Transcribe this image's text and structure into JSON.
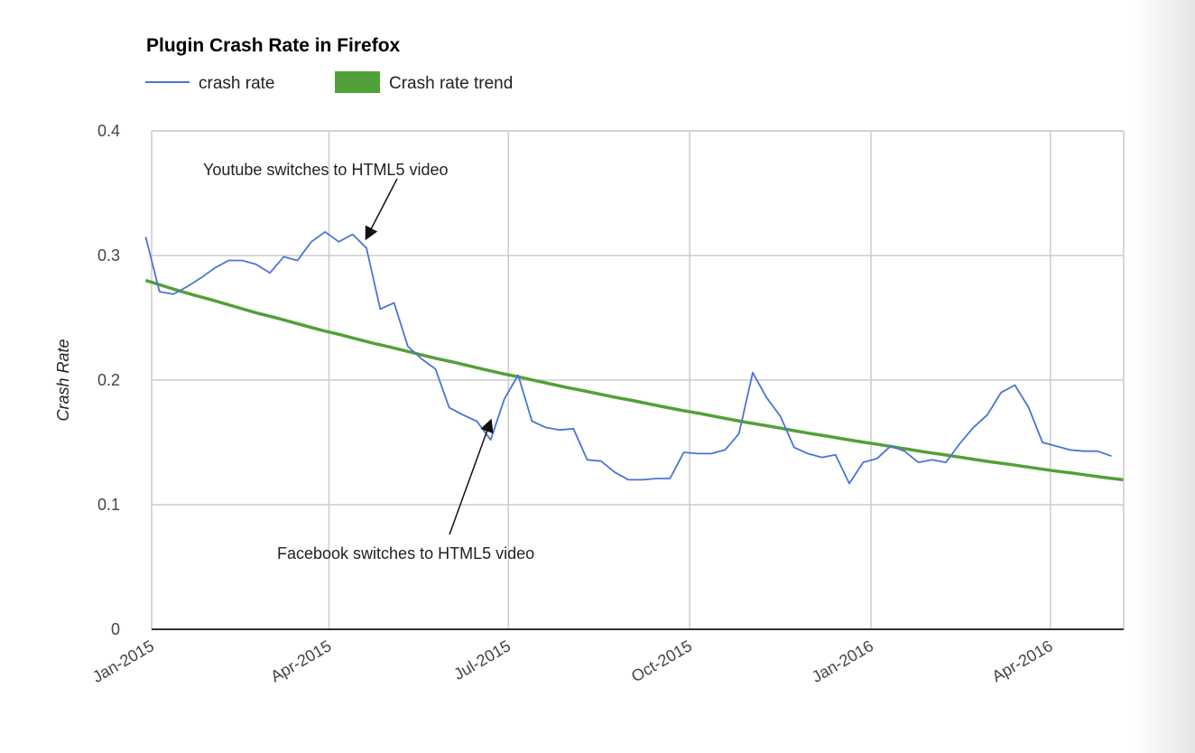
{
  "chart_data": {
    "type": "line",
    "title": "Plugin Crash Rate in Firefox",
    "xlabel": "",
    "ylabel": "Crash Rate",
    "ylim": [
      0,
      0.4
    ],
    "yticks": [
      "0",
      "0.1",
      "0.2",
      "0.3",
      "0.4"
    ],
    "xticks": [
      {
        "label": "Jan-2015",
        "date": "2015-01-01"
      },
      {
        "label": "Apr-2015",
        "date": "2015-04-01"
      },
      {
        "label": "Jul-2015",
        "date": "2015-07-01"
      },
      {
        "label": "Oct-2015",
        "date": "2015-10-01"
      },
      {
        "label": "Jan-2016",
        "date": "2016-01-01"
      },
      {
        "label": "Apr-2016",
        "date": "2016-04-01"
      }
    ],
    "grid": true,
    "legend_position": "top-left",
    "x": [
      "2014-12-29",
      "2015-01-05",
      "2015-01-12",
      "2015-01-19",
      "2015-01-26",
      "2015-02-02",
      "2015-02-09",
      "2015-02-16",
      "2015-02-23",
      "2015-03-02",
      "2015-03-09",
      "2015-03-16",
      "2015-03-23",
      "2015-03-30",
      "2015-04-06",
      "2015-04-13",
      "2015-04-20",
      "2015-04-27",
      "2015-05-04",
      "2015-05-11",
      "2015-05-18",
      "2015-05-25",
      "2015-06-01",
      "2015-06-08",
      "2015-06-15",
      "2015-06-22",
      "2015-06-29",
      "2015-07-06",
      "2015-07-13",
      "2015-07-20",
      "2015-07-27",
      "2015-08-03",
      "2015-08-10",
      "2015-08-17",
      "2015-08-24",
      "2015-08-31",
      "2015-09-07",
      "2015-09-14",
      "2015-09-21",
      "2015-09-28",
      "2015-10-05",
      "2015-10-12",
      "2015-10-19",
      "2015-10-26",
      "2015-11-02",
      "2015-11-09",
      "2015-11-16",
      "2015-11-23",
      "2015-11-30",
      "2015-12-07",
      "2015-12-14",
      "2015-12-21",
      "2015-12-28",
      "2016-01-04",
      "2016-01-11",
      "2016-01-18",
      "2016-01-25",
      "2016-02-01",
      "2016-02-08",
      "2016-02-15",
      "2016-02-22",
      "2016-02-29",
      "2016-03-07",
      "2016-03-14",
      "2016-03-21",
      "2016-03-28",
      "2016-04-04",
      "2016-04-11",
      "2016-04-18",
      "2016-04-25",
      "2016-05-02"
    ],
    "series": [
      {
        "name": "crash rate",
        "color": "#4a74d6",
        "values": [
          0.315,
          0.271,
          0.269,
          0.275,
          0.282,
          0.29,
          0.296,
          0.296,
          0.293,
          0.286,
          0.299,
          0.296,
          0.311,
          0.319,
          0.311,
          0.317,
          0.306,
          0.257,
          0.262,
          0.227,
          0.217,
          0.209,
          0.178,
          0.172,
          0.167,
          0.152,
          0.185,
          0.204,
          0.167,
          0.162,
          0.16,
          0.161,
          0.136,
          0.135,
          0.126,
          0.12,
          0.12,
          0.121,
          0.121,
          0.142,
          0.141,
          0.141,
          0.144,
          0.157,
          0.206,
          0.186,
          0.171,
          0.146,
          0.141,
          0.138,
          0.14,
          0.117,
          0.134,
          0.137,
          0.147,
          0.143,
          0.134,
          0.136,
          0.134,
          0.149,
          0.162,
          0.172,
          0.19,
          0.196,
          0.178,
          0.15,
          0.147,
          0.144,
          0.143,
          0.143,
          0.139
        ]
      },
      {
        "name": "Crash rate trend",
        "color": "#52a03a",
        "trend": "exponential",
        "points": [
          {
            "date": "2014-12-29",
            "value": 0.28
          },
          {
            "date": "2016-05-08",
            "value": 0.12
          }
        ]
      }
    ],
    "annotations": [
      {
        "text": "Youtube switches to HTML5 video",
        "date": "2015-04-20",
        "value": 0.317
      },
      {
        "text": "Facebook switches to HTML5 video",
        "date": "2015-06-22",
        "value": 0.17
      }
    ]
  }
}
